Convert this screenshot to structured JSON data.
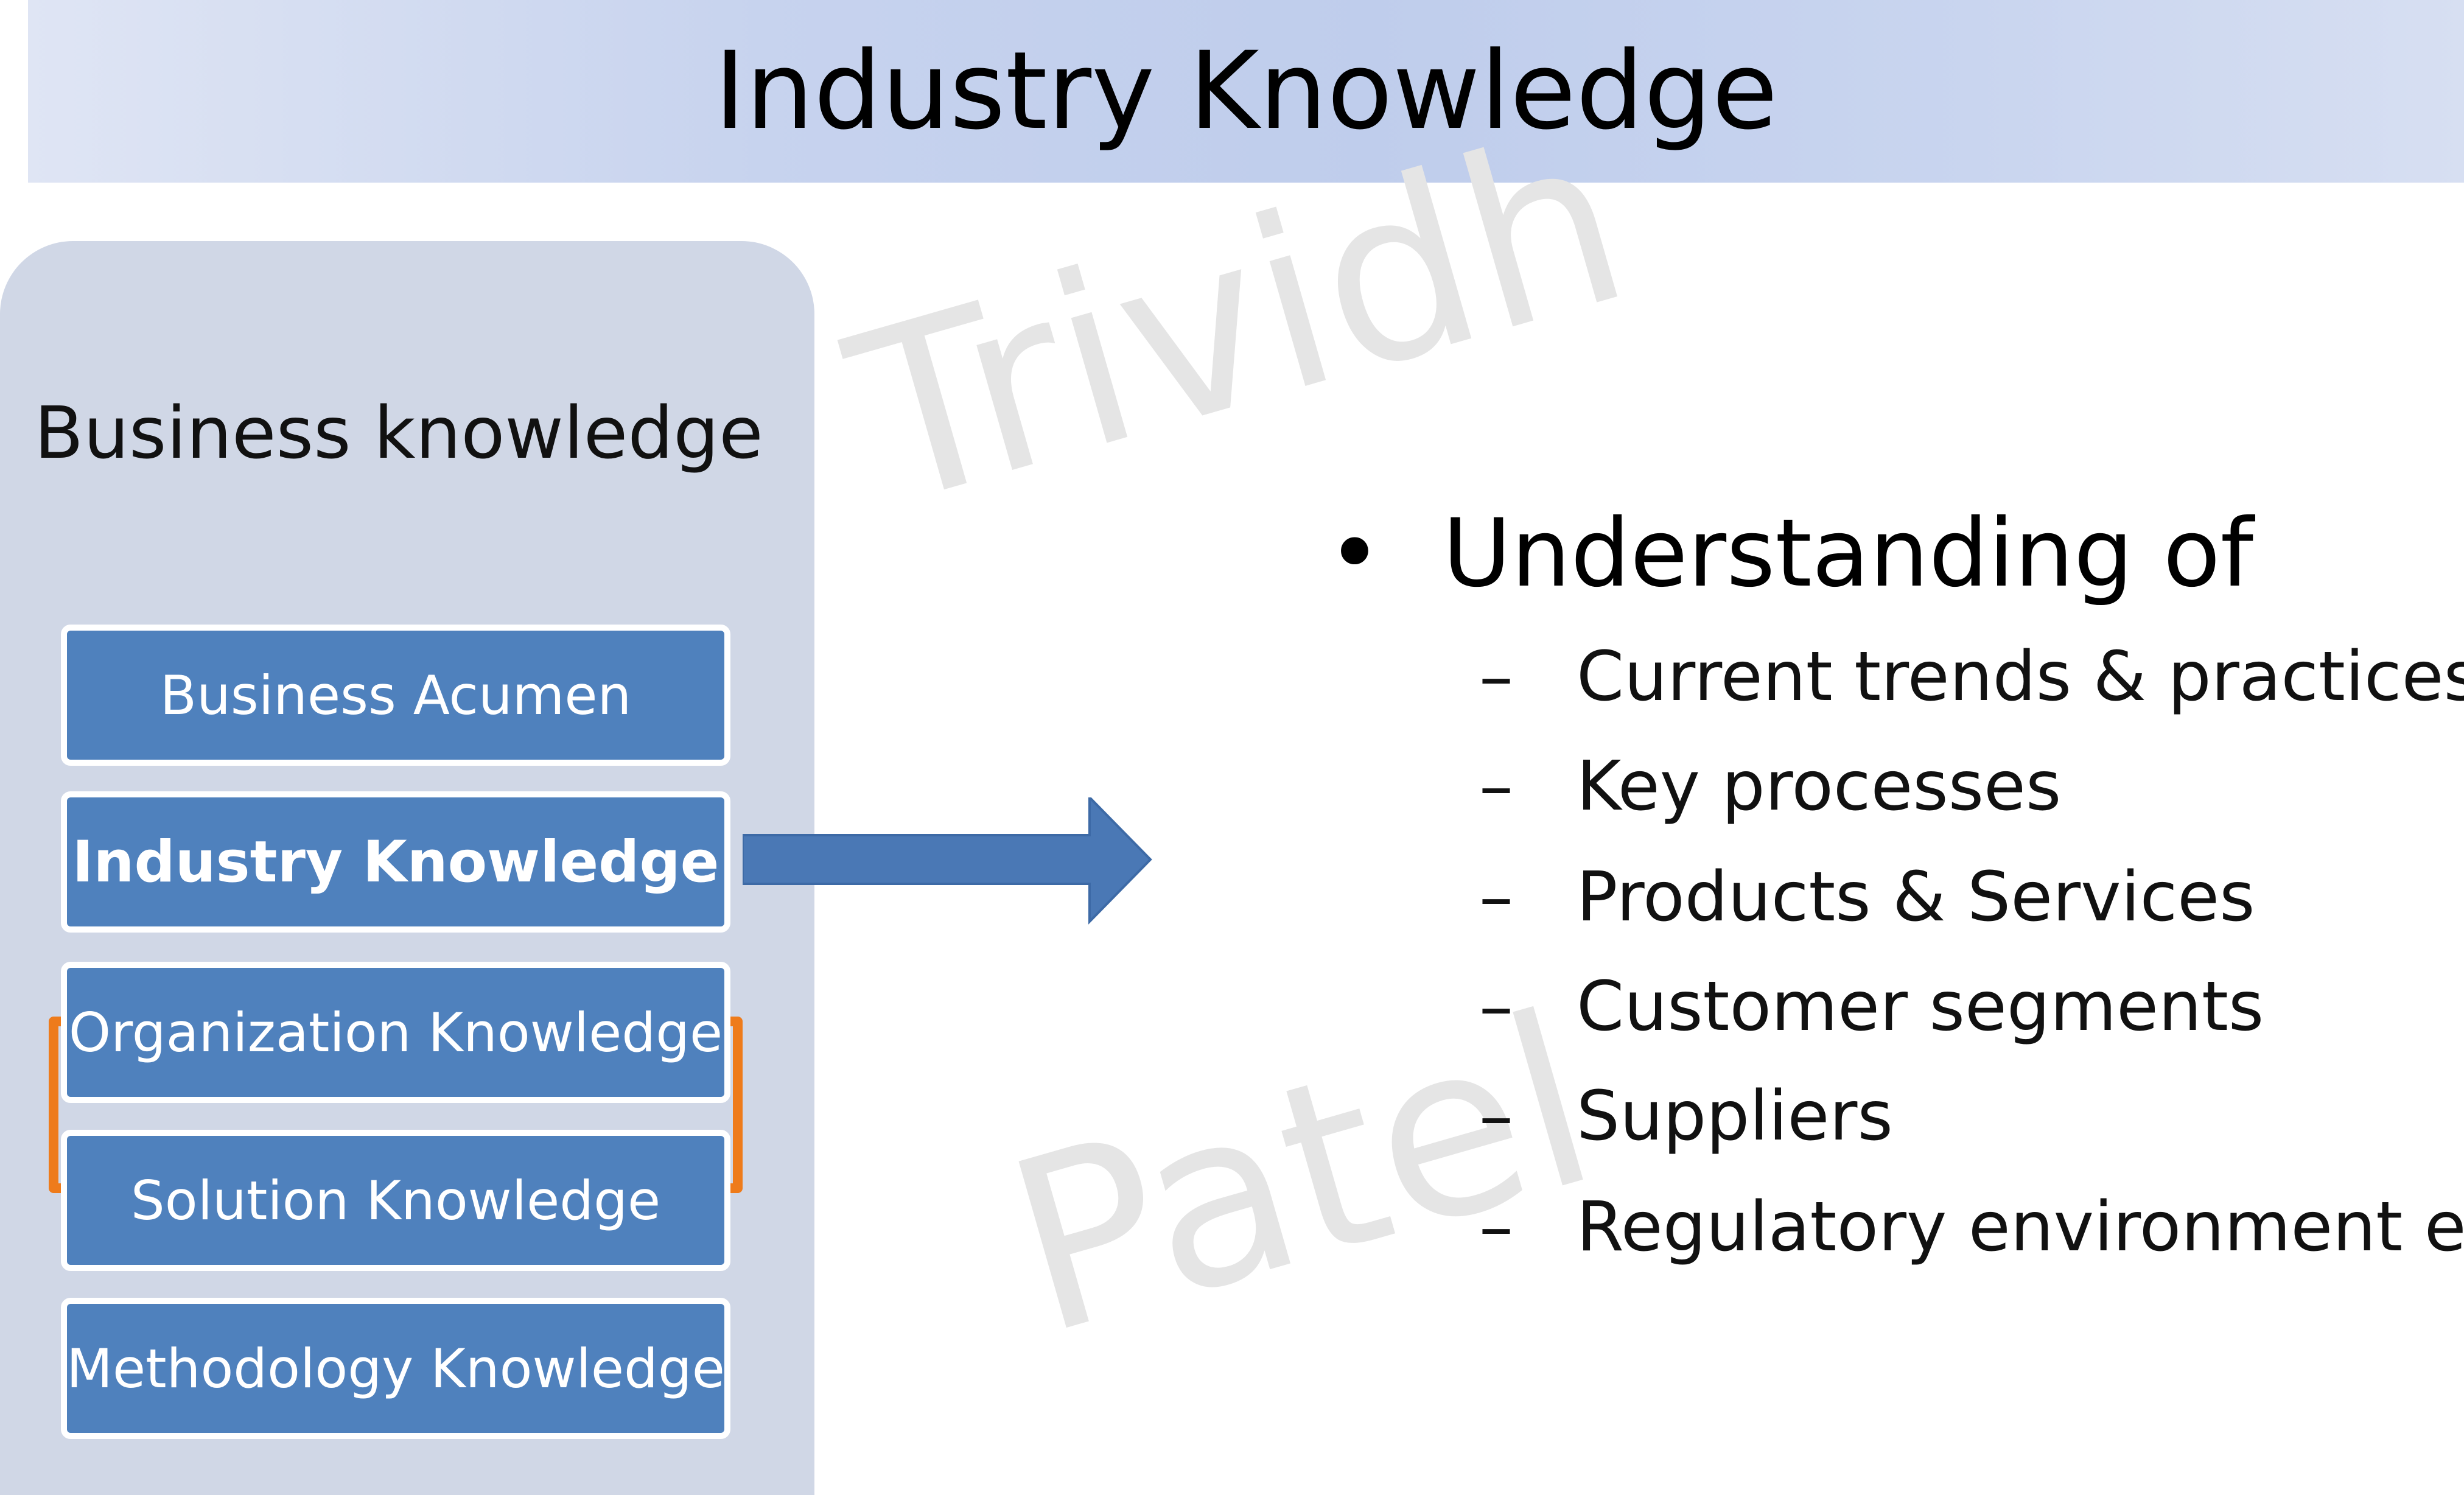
{
  "slide": {
    "title": "Industry Knowledge",
    "watermark": [
      "Trividh",
      "Patel"
    ]
  },
  "panel": {
    "heading": "Business knowledge",
    "items": [
      {
        "label": "Business Acumen",
        "selected": false
      },
      {
        "label": "Industry Knowledge",
        "selected": true
      },
      {
        "label": "Organization Knowledge",
        "selected": false
      },
      {
        "label": "Solution Knowledge",
        "selected": false
      },
      {
        "label": "Methodology Knowledge",
        "selected": false
      }
    ]
  },
  "content": {
    "bullet": "Understanding of",
    "sub_items": [
      "Current trends & practices",
      "Key processes",
      "Products & Services",
      "Customer segments",
      "Suppliers",
      "Regulatory environment etc"
    ]
  },
  "colors": {
    "box_fill": "#4f81bd",
    "selection_border": "#ee7b1b",
    "panel_bg": "#d0d7e6",
    "arrow_fill": "#4a78b5"
  }
}
